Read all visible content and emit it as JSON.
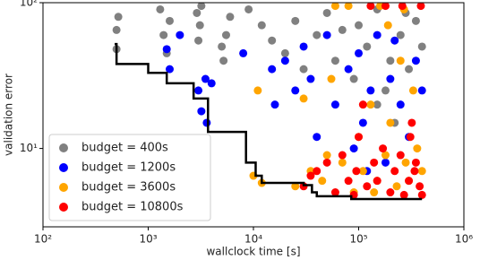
{
  "chart_data": {
    "type": "scatter",
    "xlabel": "wallclock time [s]",
    "ylabel": "validation error",
    "log_x": true,
    "log_y": true,
    "legend": "lower left",
    "xlim": [
      100,
      1000000
    ],
    "xticks": [
      {
        "value": 100,
        "label": "10²"
      },
      {
        "value": 1000,
        "label": "10³"
      },
      {
        "value": 10000,
        "label": "10⁴"
      },
      {
        "value": 100000,
        "label": "10⁵"
      },
      {
        "value": 1000000,
        "label": "10⁶"
      }
    ],
    "ylim": [
      2.9,
      100
    ],
    "yticks": [
      {
        "value": 10,
        "label": "10¹"
      },
      {
        "value": 100,
        "label": "10²"
      }
    ],
    "series": [
      {
        "name": "budget = 400s",
        "color": "#808080",
        "x": [
          500,
          500,
          520,
          1300,
          1400,
          1500,
          1600,
          2900,
          3000,
          3100,
          3200,
          5000,
          5200,
          5500,
          6000,
          9000,
          12000,
          15000,
          20000,
          25000,
          30000,
          40000,
          50000,
          60000,
          70000,
          90000,
          100000,
          120000,
          150000,
          180000,
          200000,
          250000,
          300000,
          350000,
          400000,
          150000,
          220000,
          280000
        ],
        "values": [
          48,
          65,
          80,
          90,
          60,
          45,
          75,
          85,
          55,
          70,
          95,
          50,
          40,
          60,
          80,
          90,
          70,
          55,
          45,
          75,
          35,
          60,
          85,
          40,
          65,
          30,
          70,
          50,
          90,
          25,
          40,
          60,
          35,
          75,
          50,
          20,
          15,
          85
        ]
      },
      {
        "name": "budget = 1200s",
        "color": "#0000ff",
        "x": [
          1500,
          1600,
          2000,
          3000,
          3200,
          3500,
          3600,
          4000,
          8000,
          15000,
          16000,
          20000,
          25000,
          30000,
          35000,
          40000,
          50000,
          60000,
          80000,
          90000,
          100000,
          110000,
          130000,
          150000,
          180000,
          200000,
          250000,
          300000,
          350000,
          400000,
          120000,
          220000
        ],
        "values": [
          48,
          35,
          60,
          25,
          18,
          30,
          15,
          28,
          45,
          35,
          20,
          40,
          25,
          50,
          30,
          12,
          60,
          20,
          35,
          10,
          45,
          15,
          25,
          60,
          8,
          30,
          20,
          12,
          40,
          25,
          7,
          55
        ]
      },
      {
        "name": "budget = 3600s",
        "color": "#ffa500",
        "x": [
          10000,
          11000,
          12000,
          25000,
          30000,
          35000,
          45000,
          50000,
          55000,
          70000,
          80000,
          90000,
          100000,
          110000,
          130000,
          150000,
          160000,
          180000,
          200000,
          230000,
          250000,
          280000,
          300000,
          330000,
          360000,
          400000,
          60000,
          140000,
          190000,
          270000
        ],
        "values": [
          6.5,
          25,
          5.8,
          5.5,
          22,
          7,
          6,
          9,
          30,
          8,
          95,
          5,
          12,
          7,
          20,
          6,
          95,
          9,
          15,
          5.5,
          40,
          8,
          6,
          25,
          10,
          7,
          95,
          5,
          70,
          90
        ]
      },
      {
        "name": "budget = 10800s",
        "color": "#ff0000",
        "x": [
          30000,
          35000,
          40000,
          50000,
          60000,
          70000,
          80000,
          90000,
          95000,
          100000,
          120000,
          140000,
          150000,
          170000,
          200000,
          220000,
          250000,
          270000,
          300000,
          320000,
          350000,
          380000,
          400000,
          130000,
          180000,
          260000,
          310000,
          340000,
          110000,
          390000
        ],
        "values": [
          5.5,
          6.5,
          7,
          8,
          5,
          9,
          6,
          4.8,
          7,
          12,
          5.5,
          8,
          6,
          10,
          5,
          7,
          9,
          4.8,
          6,
          15,
          8,
          5.5,
          4.8,
          95,
          95,
          95,
          12,
          7,
          20,
          95
        ]
      }
    ],
    "step_line": {
      "color": "#000000",
      "x": [
        480,
        500,
        500,
        1000,
        1000,
        1500,
        1500,
        2700,
        2700,
        3700,
        3700,
        8500,
        8500,
        10500,
        10500,
        12000,
        12000,
        30000,
        30000,
        36000,
        36000,
        40000,
        40000,
        85000,
        85000,
        400000
      ],
      "values": [
        52,
        52,
        38,
        38,
        33,
        33,
        28,
        28,
        22,
        22,
        13,
        13,
        8,
        8,
        6.5,
        6.5,
        5.8,
        5.8,
        5.6,
        5.6,
        5.0,
        5.0,
        4.7,
        4.7,
        4.5,
        4.5
      ]
    }
  }
}
